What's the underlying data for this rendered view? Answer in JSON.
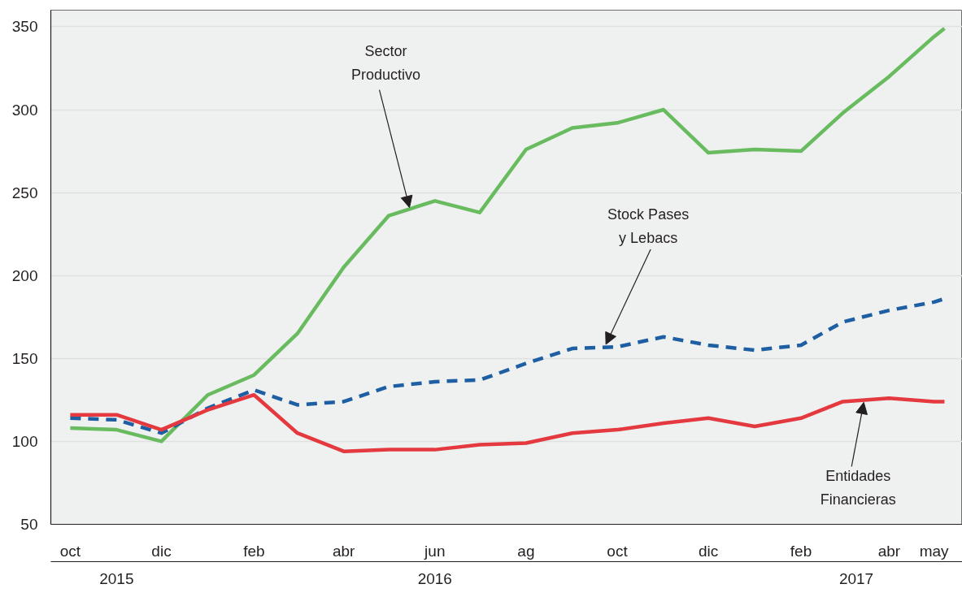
{
  "chart_data": {
    "type": "line",
    "x": [
      "2015-10",
      "2015-11",
      "2015-12",
      "2016-01",
      "2016-02",
      "2016-03",
      "2016-04",
      "2016-05",
      "2016-06",
      "2016-07",
      "2016-08",
      "2016-09",
      "2016-10",
      "2016-11",
      "2016-12",
      "2017-01",
      "2017-02",
      "2017-03",
      "2017-04",
      "2017-05",
      "2017-05-08"
    ],
    "series": [
      {
        "color": "#69bb5f",
        "line_style": "solid",
        "values": [
          108,
          107,
          100,
          128,
          140,
          165,
          205,
          236,
          245,
          238,
          276,
          289,
          292,
          300,
          274,
          276,
          275,
          298,
          320,
          344,
          349
        ]
      },
      {
        "color": "#1e5fa3",
        "line_style": "dashed",
        "values": [
          114,
          113,
          105,
          120,
          131,
          122,
          124,
          133,
          136,
          137,
          147,
          156,
          157,
          163,
          158,
          155,
          158,
          172,
          179,
          184,
          186
        ]
      },
      {
        "color": "#e3393f",
        "line_style": "solid",
        "values": [
          116,
          116,
          107,
          119,
          128,
          105,
          94,
          95,
          95,
          98,
          99,
          105,
          107,
          111,
          114,
          109,
          114,
          124,
          126,
          124,
          124
        ]
      }
    ],
    "xlim": [
      "2015-09-18",
      "2017-05-20"
    ],
    "ylim": [
      50,
      360
    ],
    "yticks": [
      50,
      100,
      150,
      200,
      250,
      300,
      350
    ],
    "xticks": [
      {
        "value": "2015-10",
        "label": "oct"
      },
      {
        "value": "2015-12",
        "label": "dic"
      },
      {
        "value": "2016-02",
        "label": "feb"
      },
      {
        "value": "2016-04",
        "label": "abr"
      },
      {
        "value": "2016-06",
        "label": "jun"
      },
      {
        "value": "2016-08",
        "label": "ag"
      },
      {
        "value": "2016-10",
        "label": "oct"
      },
      {
        "value": "2016-12",
        "label": "dic"
      },
      {
        "value": "2017-02",
        "label": "feb"
      },
      {
        "value": "2017-04",
        "label": "abr"
      },
      {
        "value": "2017-05",
        "label": "may"
      }
    ],
    "x2lim": [
      "2015-09-18",
      "2017-05-20"
    ],
    "x2ticks": [
      {
        "value": "2015-11",
        "label": "2015"
      },
      {
        "value": "2016-06",
        "label": "2016"
      },
      {
        "value": "2017-03-10",
        "label": "2017"
      }
    ],
    "grid": "y",
    "annotations": [
      {
        "text": "Sector\nProductivo",
        "x": "2016-05-15",
        "y": 240
      },
      {
        "text": "Stock Pases\ny Lebacs",
        "x": "2016-09-24",
        "y": 157
      },
      {
        "text": "Entidades\nFinancieras",
        "x": "2017-03-15",
        "y": 125
      }
    ]
  }
}
